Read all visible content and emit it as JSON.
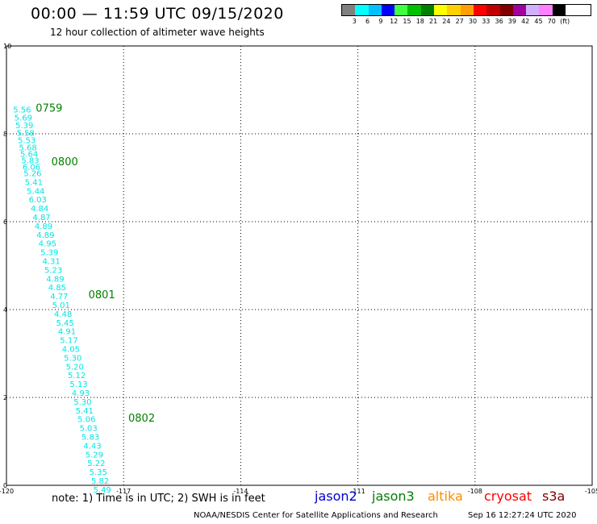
{
  "header": {
    "title": "00:00 — 11:59 UTC 09/15/2020",
    "subtitle": "12 hour collection of altimeter wave heights"
  },
  "color_scale": {
    "colors": [
      "#808080",
      "#00ffff",
      "#00c0ff",
      "#0000ff",
      "#40ff40",
      "#00c000",
      "#008000",
      "#ffff00",
      "#ffd000",
      "#ffa000",
      "#ff0000",
      "#c00000",
      "#800000",
      "#a000a0",
      "#d0b0ff",
      "#ff80ff",
      "#000000"
    ],
    "labels": [
      "3",
      "6",
      "9",
      "12",
      "15",
      "18",
      "21",
      "24",
      "27",
      "30",
      "33",
      "36",
      "39",
      "42",
      "45",
      "70",
      "(ft)"
    ]
  },
  "chart_data": {
    "type": "scatter",
    "x_ticks": [
      "-120",
      "-117",
      "-114",
      "-111",
      "-108",
      "-105"
    ],
    "y_ticks": [
      "0",
      "2",
      "4",
      "6",
      "8",
      "10"
    ],
    "xlim": [
      -120,
      -105
    ],
    "ylim": [
      0,
      10
    ],
    "grid": true,
    "point_color": "#00e5e5",
    "label_color": "#008000",
    "points": [
      {
        "x": -119.83,
        "y": 8.56,
        "v": "5.56"
      },
      {
        "x": -119.8,
        "y": 8.38,
        "v": "5.69"
      },
      {
        "x": -119.77,
        "y": 8.2,
        "v": "5.39"
      },
      {
        "x": -119.74,
        "y": 8.03,
        "v": "5.58"
      },
      {
        "x": -119.71,
        "y": 7.86,
        "v": "5.53"
      },
      {
        "x": -119.68,
        "y": 7.7,
        "v": "5.68"
      },
      {
        "x": -119.65,
        "y": 7.55,
        "v": "5.64"
      },
      {
        "x": -119.62,
        "y": 7.4,
        "v": "5.83"
      },
      {
        "x": -119.59,
        "y": 7.26,
        "v": "6.06"
      },
      {
        "x": -119.56,
        "y": 7.11,
        "v": "5.26"
      },
      {
        "x": -119.53,
        "y": 6.91,
        "v": "5.41"
      },
      {
        "x": -119.48,
        "y": 6.71,
        "v": "5.44"
      },
      {
        "x": -119.43,
        "y": 6.51,
        "v": "6.03"
      },
      {
        "x": -119.38,
        "y": 6.31,
        "v": "4.84"
      },
      {
        "x": -119.33,
        "y": 6.11,
        "v": "4.87"
      },
      {
        "x": -119.28,
        "y": 5.91,
        "v": "4.89"
      },
      {
        "x": -119.23,
        "y": 5.71,
        "v": "4.89"
      },
      {
        "x": -119.18,
        "y": 5.51,
        "v": "4.95"
      },
      {
        "x": -119.13,
        "y": 5.31,
        "v": "5.39"
      },
      {
        "x": -119.08,
        "y": 5.11,
        "v": "4.31"
      },
      {
        "x": -119.03,
        "y": 4.91,
        "v": "5.23"
      },
      {
        "x": -118.98,
        "y": 4.71,
        "v": "4.89"
      },
      {
        "x": -118.93,
        "y": 4.51,
        "v": "4.85"
      },
      {
        "x": -118.88,
        "y": 4.31,
        "v": "4.77"
      },
      {
        "x": -118.83,
        "y": 4.11,
        "v": "5.01"
      },
      {
        "x": -118.78,
        "y": 3.91,
        "v": "4.48"
      },
      {
        "x": -118.73,
        "y": 3.71,
        "v": "5.45"
      },
      {
        "x": -118.68,
        "y": 3.51,
        "v": "4.91"
      },
      {
        "x": -118.63,
        "y": 3.31,
        "v": "5.17"
      },
      {
        "x": -118.58,
        "y": 3.11,
        "v": "4.05"
      },
      {
        "x": -118.53,
        "y": 2.91,
        "v": "5.30"
      },
      {
        "x": -118.48,
        "y": 2.71,
        "v": "5.20"
      },
      {
        "x": -118.43,
        "y": 2.51,
        "v": "5.12"
      },
      {
        "x": -118.38,
        "y": 2.31,
        "v": "5.13"
      },
      {
        "x": -118.33,
        "y": 2.11,
        "v": "4.93"
      },
      {
        "x": -118.28,
        "y": 1.91,
        "v": "5.30"
      },
      {
        "x": -118.23,
        "y": 1.71,
        "v": "5.41"
      },
      {
        "x": -118.18,
        "y": 1.51,
        "v": "5.06"
      },
      {
        "x": -118.13,
        "y": 1.31,
        "v": "5.03"
      },
      {
        "x": -118.08,
        "y": 1.11,
        "v": "5.83"
      },
      {
        "x": -118.03,
        "y": 0.91,
        "v": "4.43"
      },
      {
        "x": -117.98,
        "y": 0.71,
        "v": "5.29"
      },
      {
        "x": -117.93,
        "y": 0.51,
        "v": "5.22"
      },
      {
        "x": -117.88,
        "y": 0.31,
        "v": "5.35"
      },
      {
        "x": -117.83,
        "y": 0.11,
        "v": "5.82"
      },
      {
        "x": -117.78,
        "y": -0.09,
        "v": "5.49"
      }
    ],
    "time_labels": [
      {
        "x": -119.25,
        "y": 8.6,
        "text": "0759"
      },
      {
        "x": -118.85,
        "y": 7.38,
        "text": "0800"
      },
      {
        "x": -117.9,
        "y": 4.35,
        "text": "0801"
      },
      {
        "x": -116.88,
        "y": 1.54,
        "text": "0802"
      }
    ]
  },
  "footer": {
    "note": "note:  1) Time is in UTC; 2) SWH is in feet",
    "satellites": [
      {
        "name": "jason2",
        "color": "#0000cc"
      },
      {
        "name": "jason3",
        "color": "#008000"
      },
      {
        "name": "altika",
        "color": "#ff8c00"
      },
      {
        "name": "cryosat",
        "color": "#ff0000"
      },
      {
        "name": "s3a",
        "color": "#800000"
      }
    ],
    "credit": "NOAA/NESDIS Center for Satellite Applications and Research",
    "timestamp": "Sep 16 12:27:24 UTC 2020"
  }
}
